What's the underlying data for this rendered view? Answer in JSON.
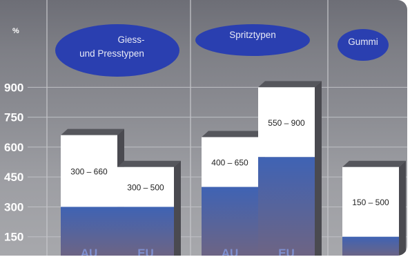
{
  "chart_data": {
    "type": "bar",
    "ylabel": "%",
    "yticks": [
      150,
      300,
      450,
      600,
      750,
      900
    ],
    "ylim": [
      0,
      1020
    ],
    "groups": [
      {
        "label_lines": [
          "Giess-",
          "und Presstypen"
        ],
        "bars": [
          {
            "category": "AU",
            "range_label": "300 – 660",
            "low": 300,
            "high": 660
          },
          {
            "category": "EU",
            "range_label": "300 – 500",
            "low": 300,
            "high": 500
          }
        ]
      },
      {
        "label_lines": [
          "Spritztypen"
        ],
        "bars": [
          {
            "category": "AU",
            "range_label": "400 – 650",
            "low": 400,
            "high": 650
          },
          {
            "category": "EU",
            "range_label": "550 – 900",
            "low": 550,
            "high": 900
          }
        ]
      },
      {
        "label_lines": [
          "Gummi"
        ],
        "bars": [
          {
            "category": "",
            "range_label": "150 – 500",
            "low": 150,
            "high": 500
          }
        ]
      }
    ],
    "colors": {
      "background": "#8a8b91",
      "bar_upper": "#ffffff",
      "bar_lower_top": "#3f63b4",
      "bar_lower_bottom": "#6e6483",
      "bubble": "#2a3fb0",
      "shadow": "#4a4a50"
    },
    "grid": true
  }
}
